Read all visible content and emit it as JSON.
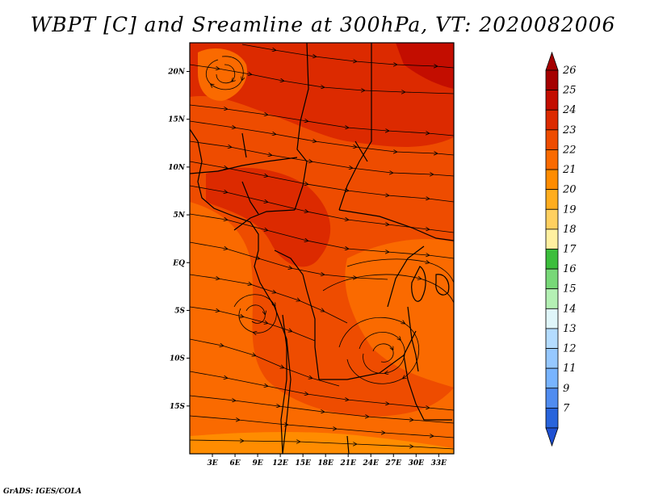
{
  "title": "WBPT [C] and Sreamline at 300hPa, VT: 2020082006",
  "credit": "GrADS: IGES/COLA",
  "map": {
    "lon_range": [
      0,
      35
    ],
    "lat_range": [
      -20,
      23
    ],
    "lat_ticks": [
      {
        "value": 20,
        "label": "20N"
      },
      {
        "value": 15,
        "label": "15N"
      },
      {
        "value": 10,
        "label": "10N"
      },
      {
        "value": 5,
        "label": "5N"
      },
      {
        "value": 0,
        "label": "EQ"
      },
      {
        "value": -5,
        "label": "5S"
      },
      {
        "value": -10,
        "label": "10S"
      },
      {
        "value": -15,
        "label": "15S"
      }
    ],
    "lon_ticks": [
      {
        "value": 3,
        "label": "3E"
      },
      {
        "value": 6,
        "label": "6E"
      },
      {
        "value": 9,
        "label": "9E"
      },
      {
        "value": 12,
        "label": "12E"
      },
      {
        "value": 15,
        "label": "15E"
      },
      {
        "value": 18,
        "label": "18E"
      },
      {
        "value": 21,
        "label": "21E"
      },
      {
        "value": 24,
        "label": "24E"
      },
      {
        "value": 27,
        "label": "27E"
      },
      {
        "value": 30,
        "label": "30E"
      },
      {
        "value": 33,
        "label": "33E"
      }
    ]
  },
  "colorbar": {
    "levels": [
      {
        "label": "26",
        "color": "#a50000"
      },
      {
        "label": "25",
        "color": "#c30d00"
      },
      {
        "label": "24",
        "color": "#dc2a00"
      },
      {
        "label": "23",
        "color": "#ee4c00"
      },
      {
        "label": "22",
        "color": "#fa6a00"
      },
      {
        "label": "21",
        "color": "#ff8c00"
      },
      {
        "label": "20",
        "color": "#ffad1e"
      },
      {
        "label": "19",
        "color": "#ffd060"
      },
      {
        "label": "18",
        "color": "#fff0a0"
      },
      {
        "label": "17",
        "color": "#3cbe3c"
      },
      {
        "label": "16",
        "color": "#78d878"
      },
      {
        "label": "15",
        "color": "#b4f0b4"
      },
      {
        "label": "14",
        "color": "#e0f6fa"
      },
      {
        "label": "13",
        "color": "#b4dcff"
      },
      {
        "label": "12",
        "color": "#96c8ff"
      },
      {
        "label": "11",
        "color": "#78b4ff"
      },
      {
        "label": "9",
        "color": "#508cf0"
      },
      {
        "label": "7",
        "color": "#2864dc"
      }
    ],
    "bottom_color": "#1e50d2"
  }
}
